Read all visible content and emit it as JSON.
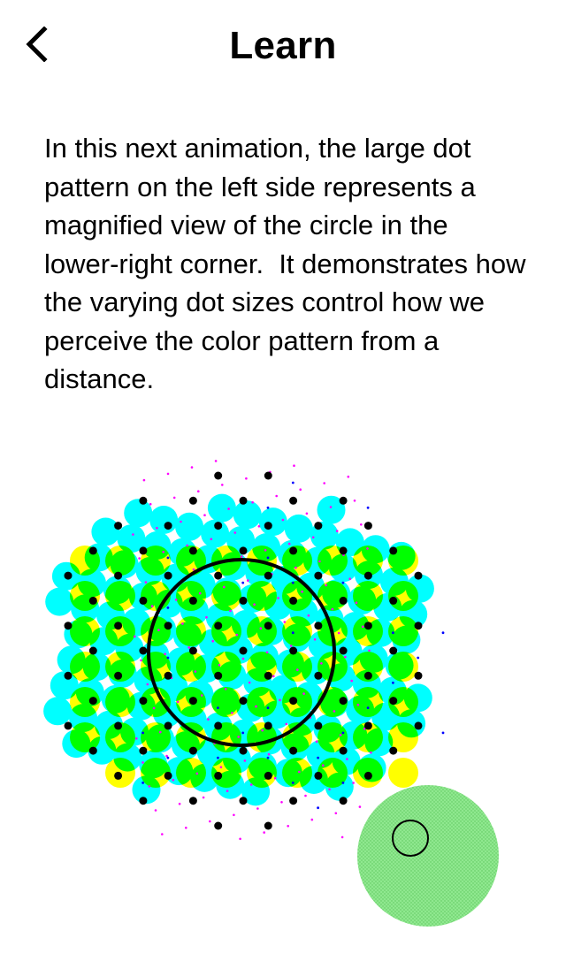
{
  "header": {
    "title": "Learn",
    "back_icon": "chevron-left-icon"
  },
  "main": {
    "description": "In this next animation, the large dot pattern on the left side represents a magnified view of the circle in the lower-right corner.  It demonstrates how the varying dot sizes control how we perceive the color pattern from a distance."
  },
  "animation": {
    "colors": {
      "yellow": "#ffff00",
      "cyan": "#00ffff",
      "green": "#00ff00",
      "blue": "#0000ff",
      "magenta": "#ff00ff",
      "black": "#000000",
      "result_swatch": "#8fe88f"
    }
  }
}
